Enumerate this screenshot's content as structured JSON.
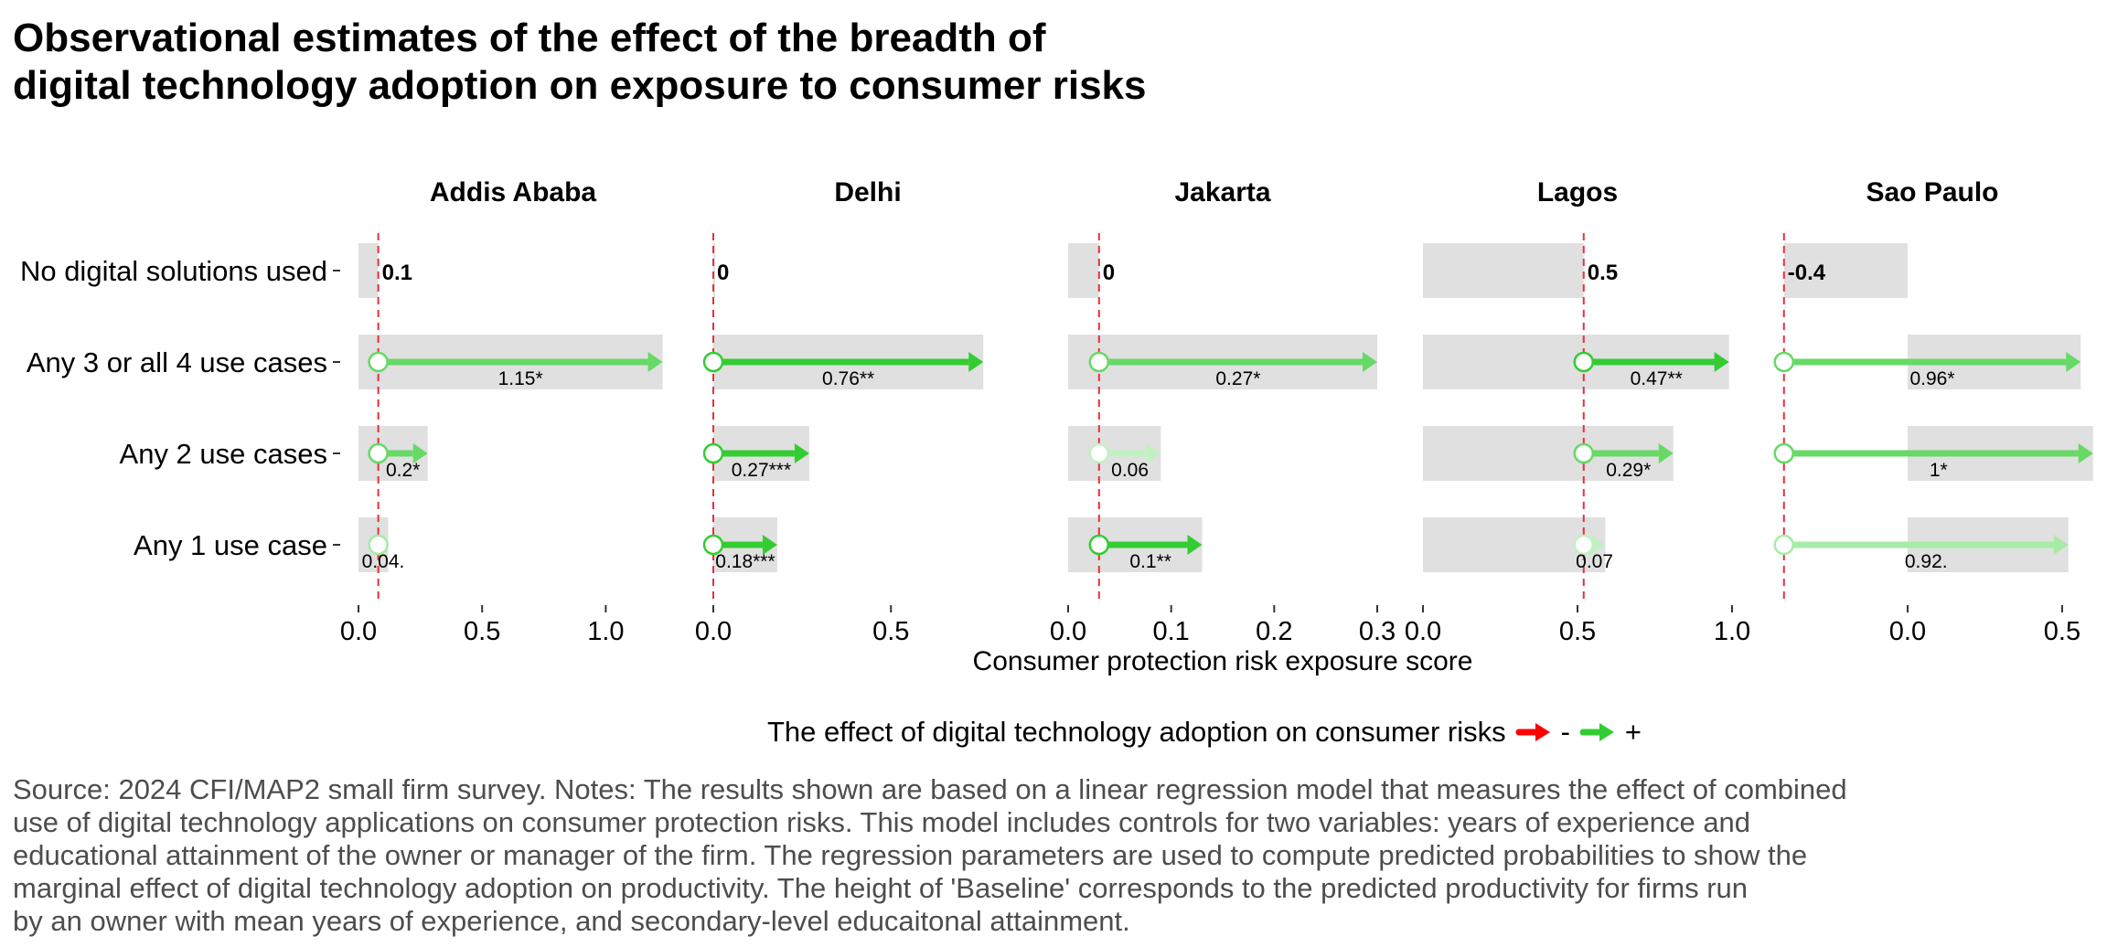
{
  "title": {
    "line1": "Observational estimates of the effect of the breadth of",
    "line2": "digital technology adoption on exposure to consumer risks"
  },
  "colors": {
    "positive": "#33CC33",
    "negative": "#FF0000",
    "bar": "#E0E0E0",
    "baseline_line": "#E8303A"
  },
  "chart_data": {
    "type": "faceted-arrow-bar",
    "xlabel": "Consumer protection risk exposure score",
    "categories": [
      "No digital solutions used",
      "Any 3 or all 4 use cases",
      "Any 2 use cases",
      "Any 1 use case"
    ],
    "facets": [
      {
        "name": "Addis Ababa",
        "xlim": [
          0,
          1.25
        ],
        "ticks": [
          {
            "v": 0,
            "t": "0.0"
          },
          {
            "v": 0.5,
            "t": "0.5"
          },
          {
            "v": 1.0,
            "t": "1.0"
          }
        ],
        "baseline": 0.08,
        "baseline_label": "0.1",
        "rows": [
          {
            "category": "Any 3 or all 4 use cases",
            "value": 1.23,
            "label": "1.15*",
            "sig": 1
          },
          {
            "category": "Any 2 use cases",
            "value": 0.28,
            "label": "0.2*",
            "sig": 1
          },
          {
            "category": "Any 1 use case",
            "value": 0.12,
            "label": "0.04.",
            "sig": 0
          }
        ]
      },
      {
        "name": "Delhi",
        "xlim": [
          0,
          0.87
        ],
        "ticks": [
          {
            "v": 0,
            "t": "0.0"
          },
          {
            "v": 0.5,
            "t": "0.5"
          }
        ],
        "baseline": 0.0,
        "baseline_label": "0",
        "rows": [
          {
            "category": "Any 3 or all 4 use cases",
            "value": 0.76,
            "label": "0.76**",
            "sig": 2
          },
          {
            "category": "Any 2 use cases",
            "value": 0.27,
            "label": "0.27***",
            "sig": 3
          },
          {
            "category": "Any 1 use case",
            "value": 0.18,
            "label": "0.18***",
            "sig": 3
          }
        ]
      },
      {
        "name": "Jakarta",
        "xlim": [
          0,
          0.3
        ],
        "ticks": [
          {
            "v": 0,
            "t": "0.0"
          },
          {
            "v": 0.1,
            "t": "0.1"
          },
          {
            "v": 0.2,
            "t": "0.2"
          },
          {
            "v": 0.3,
            "t": "0.3"
          }
        ],
        "baseline": 0.03,
        "baseline_label": "0",
        "rows": [
          {
            "category": "Any 3 or all 4 use cases",
            "value": 0.3,
            "label": "0.27*",
            "sig": 1
          },
          {
            "category": "Any 2 use cases",
            "value": 0.09,
            "label": "0.06",
            "sig": -1
          },
          {
            "category": "Any 1 use case",
            "value": 0.13,
            "label": "0.1**",
            "sig": 2
          }
        ]
      },
      {
        "name": "Lagos",
        "xlim": [
          0,
          1.0
        ],
        "ticks": [
          {
            "v": 0,
            "t": "0.0"
          },
          {
            "v": 0.5,
            "t": "0.5"
          },
          {
            "v": 1.0,
            "t": "1.0"
          }
        ],
        "baseline": 0.52,
        "baseline_label": "0.5",
        "rows": [
          {
            "category": "Any 3 or all 4 use cases",
            "value": 0.99,
            "label": "0.47**",
            "sig": 2
          },
          {
            "category": "Any 2 use cases",
            "value": 0.81,
            "label": "0.29*",
            "sig": 1
          },
          {
            "category": "Any 1 use case",
            "value": 0.59,
            "label": "0.07",
            "sig": -1
          }
        ]
      },
      {
        "name": "Sao Paulo",
        "xlim": [
          -0.42,
          0.58
        ],
        "ticks": [
          {
            "v": 0,
            "t": "0.0"
          },
          {
            "v": 0.5,
            "t": "0.5"
          }
        ],
        "baseline": -0.4,
        "baseline_label": "-0.4",
        "rows": [
          {
            "category": "Any 3 or all 4 use cases",
            "value": 0.56,
            "label": "0.96*",
            "sig": 1
          },
          {
            "category": "Any 2 use cases",
            "value": 0.6,
            "label": "1*",
            "sig": 1
          },
          {
            "category": "Any 1 use case",
            "value": 0.52,
            "label": "0.92.",
            "sig": 0
          }
        ]
      }
    ]
  },
  "legend": {
    "title": "The effect of digital technology adoption on consumer risks",
    "negative_label": "-",
    "positive_label": "+"
  },
  "source": {
    "line1": "Source: 2024 CFI/MAP2 small firm survey. Notes: The results shown are based on a linear regression model that measures the effect of combined",
    "line2": "use of digital technology applications on consumer protection risks. This model includes controls for two variables: years of experience and",
    "line3": "educational attainment of the owner or manager of the firm. The regression parameters are used to compute predicted probabilities to show the",
    "line4": "marginal effect of digital technology adoption on productivity. The height of 'Baseline' corresponds to the predicted productivity for firms run",
    "line5": "by an owner with mean years of experience, and secondary-level educaitonal attainment."
  }
}
